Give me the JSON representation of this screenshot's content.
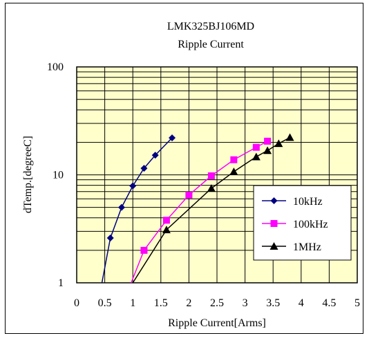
{
  "chart_data": {
    "type": "line",
    "title": "LMK325BJ106MD",
    "subtitle": "Ripple Current",
    "xlabel": "Ripple Current[Arms]",
    "ylabel": "dTemp.[degreeC]",
    "xlim": [
      0,
      5
    ],
    "ylim": [
      1,
      100
    ],
    "yscale": "log",
    "x_ticks": [
      "0",
      "0.5",
      "1",
      "1.5",
      "2",
      "2.5",
      "3",
      "3.5",
      "4",
      "4.5",
      "5"
    ],
    "y_ticks": [
      {
        "value": 1,
        "label": "1"
      },
      {
        "value": 10,
        "label": "10"
      },
      {
        "value": 100,
        "label": "100"
      }
    ],
    "grid": true,
    "plot_background": "#ffffcc",
    "legend_position": "right",
    "series": [
      {
        "name": "10kHz",
        "color": "#000080",
        "marker": "diamond",
        "points": [
          [
            0.45,
            1.0
          ],
          [
            0.6,
            2.6
          ],
          [
            0.8,
            5.0
          ],
          [
            1.0,
            7.9
          ],
          [
            1.2,
            11.5
          ],
          [
            1.4,
            15.2
          ],
          [
            1.7,
            22.0
          ]
        ]
      },
      {
        "name": "100kHz",
        "color": "#ff00ff",
        "marker": "square",
        "points": [
          [
            0.97,
            1.0
          ],
          [
            1.2,
            2.0
          ],
          [
            1.6,
            3.8
          ],
          [
            2.0,
            6.5
          ],
          [
            2.4,
            9.8
          ],
          [
            2.8,
            13.8
          ],
          [
            3.2,
            18.0
          ],
          [
            3.4,
            20.5
          ]
        ]
      },
      {
        "name": "1MHz",
        "color": "#000000",
        "marker": "triangle",
        "points": [
          [
            1.0,
            1.0
          ],
          [
            1.6,
            3.1
          ],
          [
            2.4,
            7.5
          ],
          [
            2.8,
            10.7
          ],
          [
            3.2,
            14.7
          ],
          [
            3.4,
            16.8
          ],
          [
            3.6,
            19.5
          ],
          [
            3.8,
            22.2
          ]
        ]
      }
    ]
  }
}
